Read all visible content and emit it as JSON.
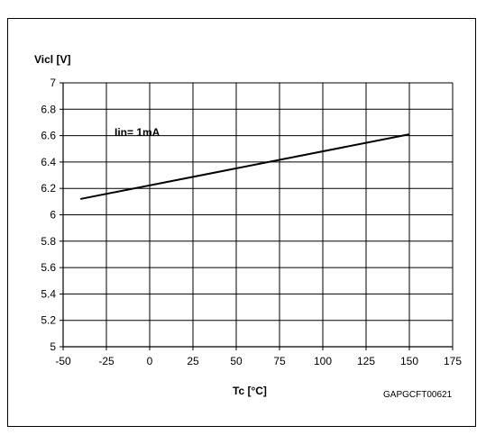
{
  "chart_data": {
    "type": "line",
    "title": "",
    "xlabel": "Tc [°C]",
    "ylabel": "Vicl [V]",
    "xlim": [
      -50,
      175
    ],
    "ylim": [
      5,
      7
    ],
    "xticks": [
      -50,
      -25,
      0,
      25,
      50,
      75,
      100,
      125,
      150,
      175
    ],
    "yticks": [
      5,
      5.2,
      5.4,
      5.6,
      5.8,
      6,
      6.2,
      6.4,
      6.6,
      6.8,
      7
    ],
    "xtick_labels": [
      "-50",
      "-25",
      "0",
      "25",
      "50",
      "75",
      "100",
      "125",
      "150",
      "175"
    ],
    "ytick_labels": [
      "5",
      "5.2",
      "5.4",
      "5.6",
      "5.8",
      "6",
      "6.2",
      "6.4",
      "6.6",
      "6.8",
      "7"
    ],
    "grid": true,
    "series": [
      {
        "x": [
          -40,
          150
        ],
        "y": [
          6.12,
          6.61
        ]
      }
    ],
    "annotation": "Iin= 1mA",
    "figure_code": "GAPGCFT00621",
    "line_color": "#000000"
  }
}
